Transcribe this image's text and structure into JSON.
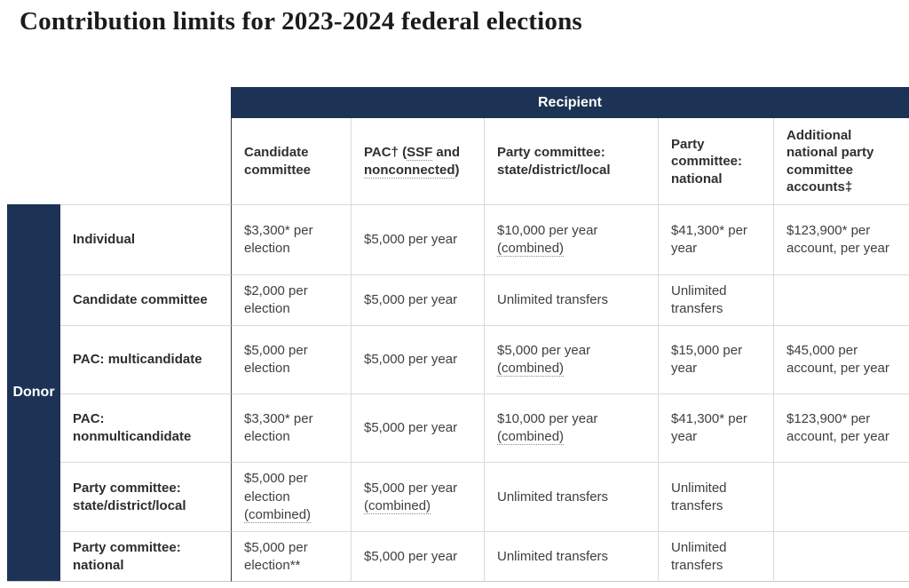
{
  "page_title": "Contribution limits for 2023-2024 federal elections",
  "colors": {
    "navy": "#1c3355",
    "border_light": "#dadada",
    "border_dark": "#3a3a3a"
  },
  "table": {
    "recipient_header": "Recipient",
    "donor_header": "Donor",
    "columns": [
      {
        "label": "Candidate committee"
      },
      {
        "pac_prefix": "PAC† (",
        "pac_term1": "SSF",
        "pac_and": " and ",
        "pac_term2": "nonconnected",
        "pac_suffix": ")"
      },
      {
        "label": "Party committee: state/district/local"
      },
      {
        "label": "Party committee: national"
      },
      {
        "label": "Additional national party committee accounts‡"
      }
    ],
    "rows": [
      {
        "label": "Individual",
        "cells": [
          {
            "text": "$3,300* per election",
            "dotted": ""
          },
          {
            "text": "$5,000 per year",
            "dotted": ""
          },
          {
            "text": "$10,000 per year ",
            "dotted": "(combined)"
          },
          {
            "text": "$41,300* per year",
            "dotted": ""
          },
          {
            "text": "$123,900* per account, per year",
            "dotted": ""
          }
        ]
      },
      {
        "label": "Candidate committee",
        "cells": [
          {
            "text": "$2,000 per election",
            "dotted": ""
          },
          {
            "text": "$5,000 per year",
            "dotted": ""
          },
          {
            "text": "Unlimited transfers",
            "dotted": ""
          },
          {
            "text": "Unlimited transfers",
            "dotted": ""
          },
          {
            "text": "",
            "dotted": ""
          }
        ]
      },
      {
        "label": "PAC: multicandidate",
        "cells": [
          {
            "text": "$5,000 per election",
            "dotted": ""
          },
          {
            "text": "$5,000 per year",
            "dotted": ""
          },
          {
            "text": "$5,000 per year ",
            "dotted": "(combined)"
          },
          {
            "text": "$15,000 per year",
            "dotted": ""
          },
          {
            "text": "$45,000 per account, per year",
            "dotted": ""
          }
        ]
      },
      {
        "label": "PAC: nonmulticandidate",
        "cells": [
          {
            "text": "$3,300* per election",
            "dotted": ""
          },
          {
            "text": "$5,000 per year",
            "dotted": ""
          },
          {
            "text": "$10,000 per year ",
            "dotted": "(combined)"
          },
          {
            "text": "$41,300* per year",
            "dotted": ""
          },
          {
            "text": "$123,900* per account, per year",
            "dotted": ""
          }
        ]
      },
      {
        "label": "Party committee: state/district/local",
        "cells": [
          {
            "text": "$5,000 per election ",
            "dotted": "(combined)"
          },
          {
            "text": "$5,000 per year ",
            "dotted": "(combined)"
          },
          {
            "text": "Unlimited transfers",
            "dotted": ""
          },
          {
            "text": "Unlimited transfers",
            "dotted": ""
          },
          {
            "text": "",
            "dotted": ""
          }
        ]
      },
      {
        "label": "Party committee: national",
        "cells": [
          {
            "text": "$5,000 per election**",
            "dotted": ""
          },
          {
            "text": "$5,000 per year",
            "dotted": ""
          },
          {
            "text": "Unlimited transfers",
            "dotted": ""
          },
          {
            "text": "Unlimited transfers",
            "dotted": ""
          },
          {
            "text": "",
            "dotted": ""
          }
        ]
      }
    ]
  }
}
